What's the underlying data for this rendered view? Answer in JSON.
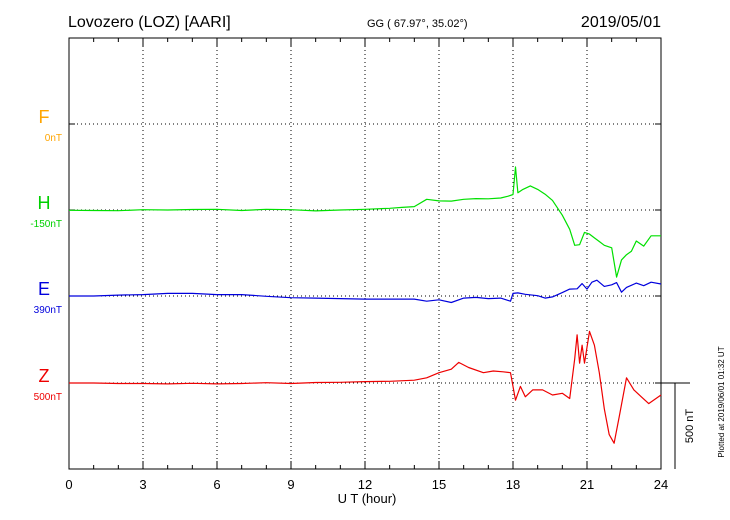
{
  "header": {
    "station": "Lovozero (LOZ)  [AARI]",
    "coords": "GG ( 67.97°,  35.02°)",
    "date": "2019/05/01"
  },
  "footer": {
    "plotted": "Plotted at 2019/06/01 01:32 UT"
  },
  "chart_data": {
    "type": "line",
    "xlabel": "U T (hour)",
    "xlim": [
      0,
      24
    ],
    "xticks": [
      "0",
      "3",
      "6",
      "9",
      "12",
      "15",
      "18",
      "21",
      "24"
    ],
    "scale_bar_label": "500 nT",
    "scale_bar_nT": 500,
    "grid": true,
    "series": [
      {
        "name": "F",
        "baseline_label": "0nT",
        "color": "#ffb000",
        "label_color": "#ffa500",
        "x": [],
        "y": []
      },
      {
        "name": "H",
        "baseline_label": "-150nT",
        "color": "#00e000",
        "label_color": "#00d000",
        "x": [
          0,
          1,
          2,
          3,
          4,
          5,
          6,
          7,
          8,
          9,
          10,
          11,
          12,
          13,
          13.5,
          14,
          14.5,
          15,
          15.5,
          16,
          16.5,
          17,
          17.5,
          17.8,
          18.0,
          18.1,
          18.2,
          18.4,
          18.7,
          19,
          19.3,
          19.6,
          20,
          20.3,
          20.5,
          20.7,
          20.9,
          21.1,
          21.3,
          21.5,
          21.7,
          22.0,
          22.2,
          22.4,
          22.6,
          22.8,
          23.0,
          23.3,
          23.6,
          24
        ],
        "y": [
          -152,
          -153,
          -154,
          -148,
          -150,
          -147,
          -146,
          -153,
          -146,
          -148,
          -155,
          -150,
          -146,
          -140,
          -135,
          -130,
          -88,
          -97,
          -98,
          -88,
          -84,
          -85,
          -80,
          -70,
          -60,
          100,
          -50,
          -30,
          -10,
          -30,
          -58,
          -94,
          -180,
          -262,
          -355,
          -352,
          -280,
          -290,
          -312,
          -333,
          -355,
          -370,
          -540,
          -440,
          -410,
          -390,
          -330,
          -360,
          -300,
          -300
        ]
      },
      {
        "name": "E",
        "baseline_label": "390nT",
        "color": "#0000dd",
        "label_color": "#0000dd",
        "x": [
          0,
          1,
          2,
          3,
          4,
          5,
          6,
          7,
          8,
          9,
          10,
          11,
          12,
          13,
          14,
          14.5,
          15,
          15.5,
          16,
          16.5,
          17,
          17.5,
          17.9,
          18.0,
          18.2,
          18.5,
          19,
          19.3,
          19.6,
          20,
          20.3,
          20.6,
          20.8,
          21,
          21.2,
          21.4,
          21.7,
          22,
          22.2,
          22.4,
          22.6,
          23,
          23.3,
          23.6,
          24
        ],
        "y": [
          390,
          390,
          395,
          398,
          405,
          405,
          398,
          398,
          388,
          380,
          378,
          375,
          372,
          372,
          372,
          360,
          368,
          352,
          378,
          382,
          375,
          378,
          360,
          405,
          408,
          400,
          392,
          378,
          385,
          410,
          430,
          432,
          462,
          430,
          470,
          482,
          446,
          455,
          468,
          412,
          440,
          465,
          450,
          470,
          460
        ]
      },
      {
        "name": "Z",
        "baseline_label": "500nT",
        "color": "#ee0000",
        "label_color": "#ee0000",
        "x": [
          0,
          1,
          2,
          3,
          4,
          5,
          6,
          7,
          8,
          9,
          10,
          11,
          12,
          13,
          14,
          14.5,
          15,
          15.5,
          15.8,
          16.2,
          16.8,
          17.2,
          17.6,
          17.9,
          18.1,
          18.3,
          18.5,
          18.8,
          19.2,
          19.6,
          20,
          20.3,
          20.5,
          20.6,
          20.7,
          20.8,
          20.9,
          21.1,
          21.3,
          21.5,
          21.7,
          21.9,
          22.1,
          22.3,
          22.6,
          22.9,
          23.2,
          23.5,
          24
        ],
        "y": [
          500,
          500,
          497,
          497,
          495,
          498,
          495,
          497,
          502,
          497,
          503,
          504,
          508,
          510,
          516,
          530,
          560,
          580,
          620,
          590,
          560,
          570,
          565,
          560,
          400,
          480,
          420,
          460,
          460,
          430,
          440,
          410,
          640,
          780,
          615,
          720,
          615,
          800,
          720,
          560,
          350,
          200,
          150,
          300,
          530,
          460,
          420,
          380,
          430
        ]
      }
    ]
  }
}
